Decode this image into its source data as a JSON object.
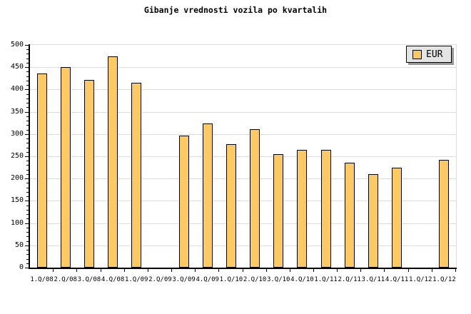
{
  "chart_data": {
    "type": "bar",
    "title": "Gibanje vrednosti vozila po kvartalih",
    "categories": [
      "1.Q/08",
      "2.Q/08",
      "3.Q/08",
      "4.Q/08",
      "1.Q/09",
      "2.Q/09",
      "3.Q/09",
      "4.Q/09",
      "1.Q/10",
      "2.Q/10",
      "3.Q/10",
      "4.Q/10",
      "1.Q/11",
      "2.Q/11",
      "3.Q/11",
      "4.Q/11",
      "1.Q/12",
      "1.Q/12"
    ],
    "series": [
      {
        "name": "EUR",
        "values": [
          436,
          450,
          422,
          474,
          415,
          null,
          297,
          323,
          277,
          311,
          255,
          264,
          264,
          236,
          210,
          224,
          null,
          242
        ]
      }
    ],
    "xlabel": "",
    "ylabel": "",
    "ylim": [
      0,
      500
    ],
    "yticks": [
      0,
      50,
      100,
      150,
      200,
      250,
      300,
      350,
      400,
      450,
      500
    ],
    "ytick_minor_step": 10,
    "grid": true,
    "legend_position": "top-right"
  },
  "legend": {
    "label": "EUR"
  },
  "colors": {
    "background": "#FFFFFF",
    "bar_fill": "#FCC963",
    "bar_border": "#000000",
    "grid": "#DCDCDC",
    "axis": "#000000",
    "text": "#000000",
    "legend_bg": "#E4E4E4",
    "legend_border": "#000000",
    "legend_shadow": "#999999"
  }
}
